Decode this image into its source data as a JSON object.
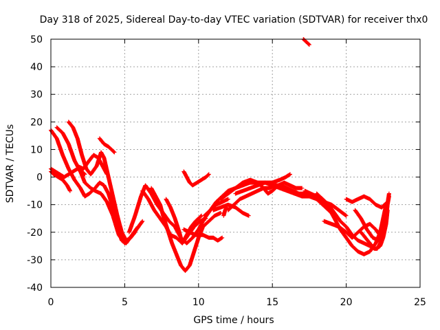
{
  "chart_data": {
    "type": "scatter",
    "title": "Day 318 of 2025, Sidereal Day-to-day VTEC variation (SDTVAR) for receiver thx0",
    "xlabel": "GPS time / hours",
    "ylabel": "SDTVAR / TECUs",
    "xlim": [
      0,
      25
    ],
    "ylim": [
      -40,
      50
    ],
    "xticks": [
      0,
      5,
      10,
      15,
      20,
      25
    ],
    "yticks": [
      -40,
      -30,
      -20,
      -10,
      0,
      10,
      20,
      30,
      40,
      50
    ],
    "grid": true,
    "marker": "+",
    "color": "#ff0000",
    "series": [
      {
        "name": "track-1",
        "points": [
          [
            0.0,
            17
          ],
          [
            0.4,
            14
          ],
          [
            0.8,
            8
          ],
          [
            1.2,
            3
          ],
          [
            1.6,
            -1
          ],
          [
            2.0,
            -4
          ],
          [
            2.3,
            -7
          ],
          [
            2.6,
            -6
          ],
          [
            3.0,
            -4
          ],
          [
            3.3,
            -2
          ],
          [
            3.6,
            -3
          ],
          [
            3.9,
            -6
          ],
          [
            4.2,
            -11
          ],
          [
            4.5,
            -18
          ],
          [
            4.8,
            -23
          ],
          [
            5.1,
            -24
          ],
          [
            5.5,
            -21
          ],
          [
            5.9,
            -18
          ]
        ]
      },
      {
        "name": "track-2",
        "points": [
          [
            0.4,
            18
          ],
          [
            0.8,
            16
          ],
          [
            1.2,
            12
          ],
          [
            1.6,
            6
          ],
          [
            2.0,
            2
          ],
          [
            2.3,
            -2
          ],
          [
            2.7,
            -4
          ],
          [
            3.0,
            -5
          ],
          [
            3.4,
            -6
          ],
          [
            3.8,
            -9
          ],
          [
            4.2,
            -14
          ],
          [
            4.6,
            -21
          ],
          [
            5.0,
            -24
          ],
          [
            5.4,
            -22
          ],
          [
            5.8,
            -19
          ],
          [
            6.2,
            -16
          ]
        ]
      },
      {
        "name": "track-3",
        "points": [
          [
            1.2,
            20
          ],
          [
            1.5,
            18
          ],
          [
            1.8,
            14
          ],
          [
            2.1,
            8
          ],
          [
            2.4,
            3
          ],
          [
            2.7,
            1
          ],
          [
            3.1,
            4
          ],
          [
            3.4,
            9
          ],
          [
            3.6,
            7
          ],
          [
            3.9,
            0
          ],
          [
            4.2,
            -7
          ],
          [
            4.5,
            -14
          ],
          [
            4.8,
            -20
          ],
          [
            5.1,
            -23
          ],
          [
            5.4,
            -22
          ],
          [
            5.7,
            -20
          ]
        ]
      },
      {
        "name": "track-4",
        "points": [
          [
            0.0,
            3
          ],
          [
            0.3,
            2
          ],
          [
            0.6,
            1
          ],
          [
            0.9,
            0
          ],
          [
            1.2,
            1
          ],
          [
            1.5,
            2
          ],
          [
            1.8,
            3
          ],
          [
            2.1,
            2
          ],
          [
            2.3,
            1
          ]
        ]
      },
      {
        "name": "track-5",
        "points": [
          [
            0.0,
            2
          ],
          [
            0.2,
            1
          ],
          [
            0.5,
            0
          ],
          [
            0.8,
            -1
          ],
          [
            1.1,
            -3
          ],
          [
            1.3,
            -5
          ]
        ]
      },
      {
        "name": "track-6",
        "points": [
          [
            3.3,
            14
          ],
          [
            3.6,
            12
          ],
          [
            3.9,
            11
          ],
          [
            4.1,
            10
          ],
          [
            4.3,
            9
          ]
        ]
      },
      {
        "name": "track-7",
        "points": [
          [
            1.8,
            4
          ],
          [
            2.2,
            3
          ],
          [
            2.6,
            6
          ],
          [
            2.9,
            8
          ],
          [
            3.2,
            7
          ],
          [
            3.5,
            4
          ],
          [
            3.8,
            1
          ]
        ]
      },
      {
        "name": "track-8",
        "points": [
          [
            5.3,
            -20
          ],
          [
            5.7,
            -14
          ],
          [
            6.1,
            -7
          ],
          [
            6.4,
            -3
          ],
          [
            6.8,
            -6
          ],
          [
            7.2,
            -10
          ],
          [
            7.6,
            -13
          ],
          [
            8.0,
            -16
          ],
          [
            8.4,
            -18
          ],
          [
            8.8,
            -22
          ],
          [
            9.2,
            -24
          ],
          [
            9.6,
            -22
          ],
          [
            10.0,
            -19
          ],
          [
            10.4,
            -15
          ],
          [
            10.8,
            -12
          ],
          [
            11.2,
            -10
          ],
          [
            11.6,
            -9
          ],
          [
            12.0,
            -8
          ]
        ]
      },
      {
        "name": "track-9",
        "points": [
          [
            6.8,
            -4
          ],
          [
            7.1,
            -7
          ],
          [
            7.4,
            -10
          ],
          [
            7.6,
            -14
          ],
          [
            7.9,
            -19
          ],
          [
            8.2,
            -24
          ],
          [
            8.5,
            -28
          ],
          [
            8.8,
            -32
          ],
          [
            9.1,
            -34
          ],
          [
            9.4,
            -32
          ],
          [
            9.7,
            -27
          ],
          [
            10.0,
            -22
          ],
          [
            10.3,
            -18
          ],
          [
            10.7,
            -16
          ],
          [
            11.1,
            -14
          ],
          [
            11.5,
            -13
          ]
        ]
      },
      {
        "name": "track-10",
        "points": [
          [
            6.2,
            -5
          ],
          [
            6.6,
            -8
          ],
          [
            7.0,
            -12
          ],
          [
            7.4,
            -15
          ],
          [
            7.8,
            -18
          ],
          [
            8.1,
            -21
          ],
          [
            8.5,
            -22
          ],
          [
            8.9,
            -24
          ],
          [
            9.3,
            -21
          ],
          [
            9.7,
            -18
          ],
          [
            10.1,
            -16
          ],
          [
            10.5,
            -15
          ]
        ]
      },
      {
        "name": "track-11",
        "points": [
          [
            7.8,
            -8
          ],
          [
            8.1,
            -11
          ],
          [
            8.4,
            -15
          ],
          [
            8.7,
            -20
          ],
          [
            8.9,
            -24
          ],
          [
            9.2,
            -21
          ],
          [
            9.5,
            -18
          ],
          [
            9.8,
            -16
          ],
          [
            10.2,
            -14
          ]
        ]
      },
      {
        "name": "track-12",
        "points": [
          [
            9.0,
            -19
          ],
          [
            9.4,
            -20
          ],
          [
            9.8,
            -21
          ],
          [
            10.3,
            -21
          ],
          [
            10.7,
            -22
          ],
          [
            11.0,
            -22
          ],
          [
            11.3,
            -23
          ],
          [
            11.6,
            -22
          ]
        ]
      },
      {
        "name": "track-13",
        "points": [
          [
            9.0,
            2
          ],
          [
            9.2,
            0
          ],
          [
            9.4,
            -2
          ],
          [
            9.6,
            -3
          ],
          [
            9.9,
            -2
          ],
          [
            10.2,
            -1
          ],
          [
            10.5,
            0
          ],
          [
            10.7,
            1
          ]
        ]
      },
      {
        "name": "track-14",
        "points": [
          [
            10.4,
            -14
          ],
          [
            10.8,
            -12
          ],
          [
            11.2,
            -9
          ],
          [
            11.6,
            -7
          ],
          [
            12.0,
            -5
          ],
          [
            12.5,
            -4
          ],
          [
            13.0,
            -3
          ],
          [
            13.5,
            -2
          ],
          [
            14.0,
            -2
          ],
          [
            14.5,
            -2
          ],
          [
            15.0,
            -3
          ],
          [
            15.5,
            -4
          ],
          [
            16.0,
            -5
          ],
          [
            16.5,
            -6
          ],
          [
            17.0,
            -7
          ],
          [
            17.5,
            -7
          ],
          [
            18.0,
            -8
          ],
          [
            18.5,
            -9
          ],
          [
            19.0,
            -10
          ],
          [
            19.5,
            -12
          ],
          [
            20.0,
            -14
          ]
        ]
      },
      {
        "name": "track-15",
        "points": [
          [
            11.5,
            -8
          ],
          [
            12.0,
            -6
          ],
          [
            12.5,
            -4
          ],
          [
            13.0,
            -2
          ],
          [
            13.5,
            -1
          ],
          [
            14.0,
            -2
          ],
          [
            14.4,
            -4
          ],
          [
            14.7,
            -6
          ],
          [
            15.0,
            -5
          ],
          [
            15.4,
            -3
          ],
          [
            15.8,
            -2
          ],
          [
            16.2,
            -3
          ],
          [
            16.6,
            -4
          ],
          [
            17.0,
            -4
          ]
        ]
      },
      {
        "name": "track-16",
        "points": [
          [
            12.0,
            -12
          ],
          [
            12.4,
            -10
          ],
          [
            12.8,
            -8
          ],
          [
            13.2,
            -7
          ],
          [
            13.6,
            -6
          ],
          [
            14.0,
            -5
          ],
          [
            14.4,
            -4
          ],
          [
            14.8,
            -4
          ],
          [
            15.2,
            -3
          ],
          [
            15.6,
            -3
          ],
          [
            16.0,
            -4
          ],
          [
            16.4,
            -5
          ],
          [
            16.8,
            -6
          ],
          [
            17.2,
            -6
          ],
          [
            17.6,
            -7
          ],
          [
            18.0,
            -8
          ],
          [
            18.4,
            -10
          ],
          [
            18.8,
            -12
          ],
          [
            19.2,
            -14
          ]
        ]
      },
      {
        "name": "track-17",
        "points": [
          [
            11.0,
            -12
          ],
          [
            11.5,
            -11
          ],
          [
            12.0,
            -10
          ],
          [
            12.5,
            -11
          ],
          [
            13.0,
            -13
          ],
          [
            13.4,
            -14
          ]
        ]
      },
      {
        "name": "track-18",
        "points": [
          [
            12.5,
            -6
          ],
          [
            13.0,
            -5
          ],
          [
            13.5,
            -4
          ],
          [
            14.0,
            -3
          ],
          [
            14.5,
            -2
          ],
          [
            15.0,
            -2
          ],
          [
            15.5,
            -1
          ],
          [
            15.9,
            0
          ],
          [
            16.2,
            1
          ]
        ]
      },
      {
        "name": "track-19",
        "points": [
          [
            11.7,
            -14
          ],
          [
            11.8,
            -12
          ],
          [
            11.9,
            -11
          ]
        ]
      },
      {
        "name": "track-20",
        "points": [
          [
            17.2,
            -5
          ],
          [
            17.6,
            -6
          ],
          [
            18.0,
            -7
          ],
          [
            18.4,
            -8
          ],
          [
            18.8,
            -10
          ],
          [
            19.2,
            -13
          ],
          [
            19.6,
            -16
          ],
          [
            20.0,
            -18
          ],
          [
            20.4,
            -21
          ],
          [
            20.8,
            -23
          ],
          [
            21.2,
            -24
          ],
          [
            21.6,
            -25
          ],
          [
            22.0,
            -26
          ],
          [
            22.3,
            -25
          ],
          [
            22.5,
            -22
          ],
          [
            22.7,
            -17
          ],
          [
            22.8,
            -12
          ]
        ]
      },
      {
        "name": "track-21",
        "points": [
          [
            18.0,
            -6
          ],
          [
            18.4,
            -8
          ],
          [
            18.8,
            -11
          ],
          [
            19.2,
            -15
          ],
          [
            19.6,
            -19
          ],
          [
            20.0,
            -22
          ],
          [
            20.4,
            -25
          ],
          [
            20.8,
            -27
          ],
          [
            21.2,
            -28
          ],
          [
            21.6,
            -27
          ],
          [
            22.0,
            -24
          ],
          [
            22.3,
            -20
          ],
          [
            22.5,
            -15
          ],
          [
            22.7,
            -10
          ]
        ]
      },
      {
        "name": "track-22",
        "points": [
          [
            18.5,
            -16
          ],
          [
            19.0,
            -17
          ],
          [
            19.5,
            -18
          ],
          [
            20.0,
            -20
          ],
          [
            20.4,
            -22
          ],
          [
            20.8,
            -20
          ],
          [
            21.2,
            -18
          ],
          [
            21.6,
            -17
          ],
          [
            22.0,
            -19
          ],
          [
            22.4,
            -22
          ]
        ]
      },
      {
        "name": "track-23",
        "points": [
          [
            20.0,
            -8
          ],
          [
            20.4,
            -9
          ],
          [
            20.8,
            -8
          ],
          [
            21.2,
            -7
          ],
          [
            21.6,
            -8
          ],
          [
            22.0,
            -10
          ],
          [
            22.4,
            -11
          ],
          [
            22.8,
            -9
          ]
        ]
      },
      {
        "name": "track-24",
        "points": [
          [
            21.0,
            -20
          ],
          [
            21.3,
            -22
          ],
          [
            21.6,
            -24
          ],
          [
            21.9,
            -26
          ],
          [
            22.1,
            -26
          ],
          [
            22.3,
            -24
          ],
          [
            22.5,
            -20
          ],
          [
            22.7,
            -15
          ],
          [
            22.8,
            -10
          ],
          [
            22.9,
            -7
          ]
        ]
      },
      {
        "name": "track-25",
        "points": [
          [
            20.6,
            -12
          ],
          [
            21.0,
            -15
          ],
          [
            21.4,
            -19
          ],
          [
            21.8,
            -22
          ],
          [
            22.2,
            -23
          ],
          [
            22.5,
            -19
          ],
          [
            22.7,
            -13
          ],
          [
            22.9,
            -6
          ]
        ]
      },
      {
        "name": "track-26",
        "points": [
          [
            17.1,
            50
          ],
          [
            17.3,
            49
          ],
          [
            17.5,
            48
          ]
        ]
      }
    ]
  }
}
